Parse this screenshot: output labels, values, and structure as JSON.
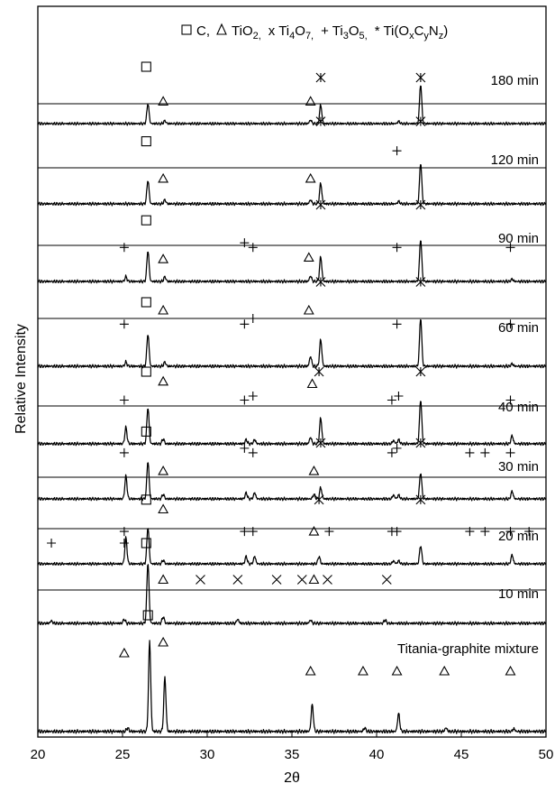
{
  "chart_data": {
    "type": "line",
    "title": "",
    "xlabel": "2θ",
    "ylabel": "Relative Intensity",
    "xlim": [
      20,
      50
    ],
    "xticks": [
      20,
      25,
      30,
      35,
      40,
      45,
      50
    ],
    "grid": false,
    "legend": {
      "placement": "top",
      "entries": [
        {
          "symbol": "square",
          "text": "C,"
        },
        {
          "symbol": "triangle",
          "text": "TiO",
          "sub": "2,"
        },
        {
          "symbol": "none",
          "text": "x Ti",
          "sub": "4",
          "tail": "O",
          "tail_sub": "7,"
        },
        {
          "symbol": "none",
          "text": "+ Ti",
          "sub": "3",
          "tail": "O",
          "tail_sub": "5,"
        },
        {
          "symbol": "none",
          "text": "* Ti(O",
          "sub": "x",
          "tail": "C",
          "tail_sub": "y",
          "tail2": "N",
          "tail2_sub": "z",
          "end": ")"
        }
      ]
    },
    "series": [
      {
        "name": "180 min",
        "peaks": [
          [
            26.5,
            0.28
          ],
          [
            27.5,
            0.04
          ],
          [
            36.1,
            0.05
          ],
          [
            36.7,
            0.26
          ],
          [
            41.3,
            0.03
          ],
          [
            42.6,
            0.55
          ]
        ],
        "markers": [
          {
            "type": "square",
            "x": 26.4,
            "rise": 0.8
          },
          {
            "type": "triangle",
            "x": 27.4,
            "rise": 0.32
          },
          {
            "type": "triangle",
            "x": 36.1,
            "rise": 0.32
          },
          {
            "type": "star",
            "x": 36.7,
            "rise": 0.65
          },
          {
            "type": "star",
            "x": 42.6,
            "rise": 0.65
          }
        ]
      },
      {
        "name": "120 min",
        "peaks": [
          [
            26.5,
            0.3
          ],
          [
            27.5,
            0.05
          ],
          [
            36.1,
            0.05
          ],
          [
            36.7,
            0.26
          ],
          [
            41.3,
            0.03
          ],
          [
            42.6,
            0.52
          ]
        ],
        "markers": [
          {
            "type": "square",
            "x": 26.4,
            "rise": 0.8
          },
          {
            "type": "triangle",
            "x": 27.4,
            "rise": 0.33
          },
          {
            "type": "triangle",
            "x": 36.1,
            "rise": 0.33
          },
          {
            "type": "star",
            "x": 36.7,
            "rise": 1.05
          },
          {
            "type": "star",
            "x": 42.6,
            "rise": 1.05
          },
          {
            "type": "plus",
            "x": 41.2,
            "rise": 0.68
          }
        ]
      },
      {
        "name": "90 min",
        "peaks": [
          [
            25.2,
            0.06
          ],
          [
            26.5,
            0.4
          ],
          [
            27.5,
            0.06
          ],
          [
            36.1,
            0.07
          ],
          [
            36.7,
            0.32
          ],
          [
            42.6,
            0.55
          ],
          [
            48.0,
            0.03
          ]
        ],
        "markers": [
          {
            "type": "square",
            "x": 26.4,
            "rise": 0.8
          },
          {
            "type": "triangle",
            "x": 27.4,
            "rise": 0.3
          },
          {
            "type": "triangle",
            "x": 36.0,
            "rise": 0.32
          },
          {
            "type": "star",
            "x": 36.7,
            "rise": 1.0
          },
          {
            "type": "star",
            "x": 42.6,
            "rise": 1.0
          },
          {
            "type": "plus",
            "x": 25.1,
            "rise": 0.45
          },
          {
            "type": "plus",
            "x": 32.2,
            "rise": 0.51
          },
          {
            "type": "plus",
            "x": 32.7,
            "rise": 0.45
          },
          {
            "type": "plus",
            "x": 41.2,
            "rise": 0.45
          },
          {
            "type": "plus",
            "x": 47.9,
            "rise": 0.45
          }
        ]
      },
      {
        "name": "60 min",
        "peaks": [
          [
            25.2,
            0.05
          ],
          [
            26.5,
            0.4
          ],
          [
            27.5,
            0.05
          ],
          [
            36.1,
            0.12
          ],
          [
            36.7,
            0.33
          ],
          [
            42.6,
            0.6
          ],
          [
            48.0,
            0.03
          ]
        ],
        "markers": [
          {
            "type": "square",
            "x": 26.4,
            "rise": 0.8
          },
          {
            "type": "triangle",
            "x": 27.4,
            "rise": 0.7
          },
          {
            "type": "triangle",
            "x": 36.0,
            "rise": 0.7
          },
          {
            "type": "star",
            "x": 36.7,
            "rise": 1.05
          },
          {
            "type": "star",
            "x": 42.6,
            "rise": 1.05
          },
          {
            "type": "plus",
            "x": 25.1,
            "rise": 0.53
          },
          {
            "type": "plus",
            "x": 32.2,
            "rise": 0.53
          },
          {
            "type": "plus",
            "x": 32.7,
            "rise": 0.6
          },
          {
            "type": "plus",
            "x": 41.2,
            "rise": 0.53
          },
          {
            "type": "plus",
            "x": 47.9,
            "rise": 0.53
          }
        ]
      },
      {
        "name": "40 min",
        "peaks": [
          [
            25.2,
            0.2
          ],
          [
            26.5,
            0.45
          ],
          [
            27.4,
            0.06
          ],
          [
            32.3,
            0.05
          ],
          [
            32.8,
            0.05
          ],
          [
            36.1,
            0.08
          ],
          [
            36.7,
            0.32
          ],
          [
            41.0,
            0.04
          ],
          [
            41.3,
            0.05
          ],
          [
            42.6,
            0.55
          ],
          [
            48.0,
            0.1
          ]
        ],
        "markers": [
          {
            "type": "square",
            "x": 26.4,
            "rise": 0.9
          },
          {
            "type": "triangle",
            "x": 27.4,
            "rise": 0.78
          },
          {
            "type": "triangle",
            "x": 36.2,
            "rise": 0.75
          },
          {
            "type": "star",
            "x": 36.6,
            "rise": 0.9
          },
          {
            "type": "star",
            "x": 42.6,
            "rise": 0.9
          },
          {
            "type": "plus",
            "x": 25.1,
            "rise": 0.55
          },
          {
            "type": "plus",
            "x": 32.2,
            "rise": 0.55
          },
          {
            "type": "plus",
            "x": 32.7,
            "rise": 0.6
          },
          {
            "type": "plus",
            "x": 40.9,
            "rise": 0.55
          },
          {
            "type": "plus",
            "x": 41.3,
            "rise": 0.6
          },
          {
            "type": "plus",
            "x": 47.9,
            "rise": 0.55
          }
        ]
      },
      {
        "name": "30 min",
        "peaks": [
          [
            25.2,
            0.3
          ],
          [
            26.5,
            0.5
          ],
          [
            27.4,
            0.06
          ],
          [
            32.3,
            0.08
          ],
          [
            32.8,
            0.08
          ],
          [
            36.3,
            0.06
          ],
          [
            36.7,
            0.15
          ],
          [
            41.0,
            0.05
          ],
          [
            41.3,
            0.05
          ],
          [
            42.6,
            0.35
          ],
          [
            48.0,
            0.1
          ]
        ],
        "markers": [
          {
            "type": "square",
            "x": 26.4,
            "rise": 0.9
          },
          {
            "type": "triangle",
            "x": 27.4,
            "rise": 0.38
          },
          {
            "type": "triangle",
            "x": 36.3,
            "rise": 0.38
          },
          {
            "type": "star",
            "x": 36.7,
            "rise": 0.75
          },
          {
            "type": "star",
            "x": 42.6,
            "rise": 0.75
          },
          {
            "type": "plus",
            "x": 25.1,
            "rise": 0.62
          },
          {
            "type": "plus",
            "x": 32.2,
            "rise": 0.68
          },
          {
            "type": "plus",
            "x": 32.7,
            "rise": 0.62
          },
          {
            "type": "plus",
            "x": 40.9,
            "rise": 0.62
          },
          {
            "type": "plus",
            "x": 41.2,
            "rise": 0.68
          },
          {
            "type": "plus",
            "x": 45.5,
            "rise": 0.62
          },
          {
            "type": "plus",
            "x": 46.4,
            "rise": 0.62
          },
          {
            "type": "plus",
            "x": 47.9,
            "rise": 0.62
          }
        ]
      },
      {
        "name": "20 min",
        "peaks": [
          [
            25.2,
            0.35
          ],
          [
            26.5,
            0.5
          ],
          [
            27.4,
            0.05
          ],
          [
            32.3,
            0.1
          ],
          [
            32.8,
            0.1
          ],
          [
            36.6,
            0.1
          ],
          [
            41.0,
            0.04
          ],
          [
            41.3,
            0.04
          ],
          [
            42.6,
            0.25
          ],
          [
            48.0,
            0.12
          ]
        ],
        "markers": [
          {
            "type": "square",
            "x": 26.4,
            "rise": 0.88
          },
          {
            "type": "triangle",
            "x": 27.4,
            "rise": 0.75
          },
          {
            "type": "triangle",
            "x": 36.3,
            "rise": 0.45
          },
          {
            "type": "star",
            "x": 36.6,
            "rise": 0.88
          },
          {
            "type": "star",
            "x": 42.6,
            "rise": 0.88
          },
          {
            "type": "plus",
            "x": 25.1,
            "rise": 0.45
          },
          {
            "type": "plus",
            "x": 32.2,
            "rise": 0.45
          },
          {
            "type": "plus",
            "x": 32.7,
            "rise": 0.45
          },
          {
            "type": "plus",
            "x": 37.2,
            "rise": 0.45
          },
          {
            "type": "plus",
            "x": 40.9,
            "rise": 0.45
          },
          {
            "type": "plus",
            "x": 41.2,
            "rise": 0.45
          },
          {
            "type": "plus",
            "x": 45.5,
            "rise": 0.45
          },
          {
            "type": "plus",
            "x": 46.4,
            "rise": 0.45
          },
          {
            "type": "plus",
            "x": 47.9,
            "rise": 0.45
          },
          {
            "type": "plus",
            "x": 49.0,
            "rise": 0.45
          }
        ]
      },
      {
        "name": "10 min",
        "peaks": [
          [
            20.8,
            0.03
          ],
          [
            25.1,
            0.05
          ],
          [
            26.5,
            0.75
          ],
          [
            27.4,
            0.08
          ],
          [
            31.8,
            0.05
          ],
          [
            36.1,
            0.04
          ],
          [
            40.5,
            0.04
          ]
        ],
        "markers": [
          {
            "type": "square",
            "x": 26.4,
            "rise": 1.0
          },
          {
            "type": "triangle",
            "x": 27.4,
            "rise": 0.55
          },
          {
            "type": "triangle",
            "x": 36.3,
            "rise": 0.55
          },
          {
            "type": "cross",
            "x": 29.6,
            "rise": 0.55
          },
          {
            "type": "cross",
            "x": 31.8,
            "rise": 0.55
          },
          {
            "type": "cross",
            "x": 34.1,
            "rise": 0.55
          },
          {
            "type": "cross",
            "x": 35.6,
            "rise": 0.55
          },
          {
            "type": "cross",
            "x": 37.1,
            "rise": 0.55
          },
          {
            "type": "cross",
            "x": 40.6,
            "rise": 0.55
          },
          {
            "type": "plus",
            "x": 20.8,
            "rise": 1.0
          },
          {
            "type": "plus",
            "x": 25.1,
            "rise": 1.0
          }
        ]
      },
      {
        "name": "Titania-graphite mixture",
        "peaks": [
          [
            25.3,
            0.04
          ],
          [
            26.6,
            1.0
          ],
          [
            27.5,
            0.6
          ],
          [
            36.2,
            0.3
          ],
          [
            39.3,
            0.04
          ],
          [
            41.3,
            0.2
          ],
          [
            44.1,
            0.04
          ],
          [
            48.1,
            0.03
          ]
        ],
        "markers": [
          {
            "type": "square",
            "x": 26.5,
            "rise": 1.3
          },
          {
            "type": "triangle",
            "x": 25.1,
            "rise": 0.88
          },
          {
            "type": "triangle",
            "x": 27.4,
            "rise": 1.0
          },
          {
            "type": "triangle",
            "x": 36.1,
            "rise": 0.68
          },
          {
            "type": "triangle",
            "x": 39.2,
            "rise": 0.68
          },
          {
            "type": "triangle",
            "x": 41.2,
            "rise": 0.68
          },
          {
            "type": "triangle",
            "x": 44.0,
            "rise": 0.68
          },
          {
            "type": "triangle",
            "x": 47.9,
            "rise": 0.68
          }
        ]
      }
    ]
  }
}
